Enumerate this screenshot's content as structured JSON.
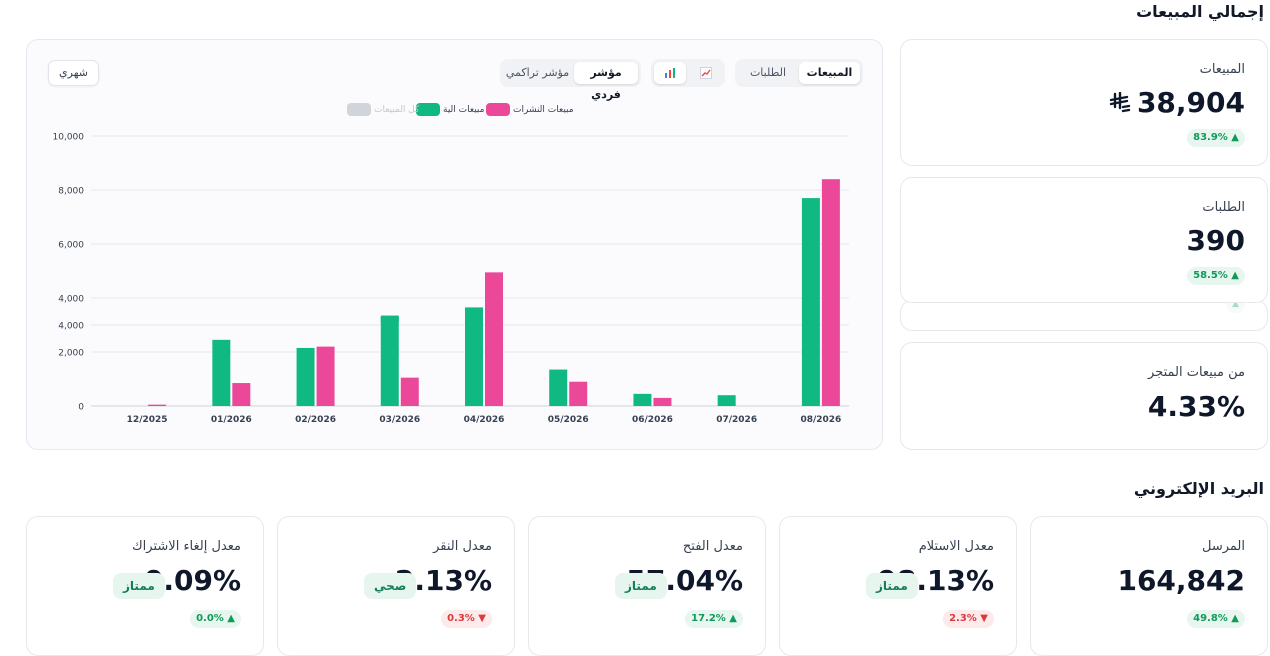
{
  "sales_section": {
    "title": "إجمالي المبيعات"
  },
  "email_section": {
    "title": "البريد الإلكتروني"
  },
  "chart_toolbar": {
    "metric_tabs": [
      "المبيعات",
      "الطلبات"
    ],
    "chart_type_icons": [
      "bar-chart-icon",
      "line-chart-icon"
    ],
    "mode_tabs": [
      "مؤشر فردي",
      "مؤشر تراكمي"
    ],
    "period_label": "شهري"
  },
  "legend": [
    {
      "name": "مبيعات النشرات",
      "color": "#ec4899"
    },
    {
      "name": "مبيعات الية",
      "color": "#10b981"
    },
    {
      "name": "كل المبيعات",
      "color": "#d1d5db"
    }
  ],
  "chart_data": {
    "type": "bar",
    "categories": [
      "12/2025",
      "01/2026",
      "02/2026",
      "03/2026",
      "04/2026",
      "05/2026",
      "06/2026",
      "07/2026",
      "08/2026"
    ],
    "series": [
      {
        "name": "مبيعات الية",
        "color": "#10b981",
        "values": [
          0,
          2450,
          2150,
          3300,
          3650,
          1350,
          450,
          400,
          7700
        ]
      },
      {
        "name": "مبيعات النشرات",
        "color": "#ec4899",
        "values": [
          50,
          850,
          2200,
          1050,
          4950,
          900,
          300,
          0,
          8400
        ]
      }
    ],
    "extra_marks": [
      {
        "category": "03/2026",
        "series": "مبيعات الية",
        "range": [
          4100,
          4350
        ]
      },
      {
        "category": "04/2026",
        "series": "مبيعات الية",
        "range": [
          4100,
          4650
        ]
      }
    ],
    "y_ticks": [
      "10,000",
      "8,000",
      "6,000",
      "4,000",
      "4,000",
      "2,000",
      "0"
    ],
    "y_tick_values": [
      10000,
      8000,
      6000,
      4000,
      4000,
      2000,
      0
    ],
    "ylim": [
      0,
      10000
    ],
    "grid": true,
    "legend_position": "top-center"
  },
  "kpis": {
    "sales": {
      "label": "المبيعات",
      "value": "38,904",
      "currency_icon": "riyal-icon",
      "change": "83.9%",
      "direction": "up"
    },
    "orders": {
      "label": "الطلبات",
      "value": "390",
      "change": "58.5%",
      "direction": "up"
    },
    "store_share": {
      "label": "من مبيعات المتجر",
      "value": "4.33%"
    }
  },
  "email_kpis": [
    {
      "label": "المرسل",
      "value": "164,842",
      "change": "49.8%",
      "direction": "up",
      "rating": ""
    },
    {
      "label": "معدل الاستلام",
      "value": "98.13%",
      "change": "2.3%",
      "direction": "down",
      "rating": "ممتاز"
    },
    {
      "label": "معدل الفتح",
      "value": "57.04%",
      "change": "17.2%",
      "direction": "up",
      "rating": "ممتاز"
    },
    {
      "label": "معدل النقر",
      "value": "2.13%",
      "change": "0.3%",
      "direction": "down",
      "rating": "صحي"
    },
    {
      "label": "معدل إلغاء الاشتراك",
      "value": "0.09%",
      "change": "0.0%",
      "direction": "up",
      "rating": "ممتاز"
    }
  ],
  "colors": {
    "green": "#10b981",
    "pink": "#ec4899",
    "up": "#129a5a",
    "down": "#dc3b3b"
  }
}
